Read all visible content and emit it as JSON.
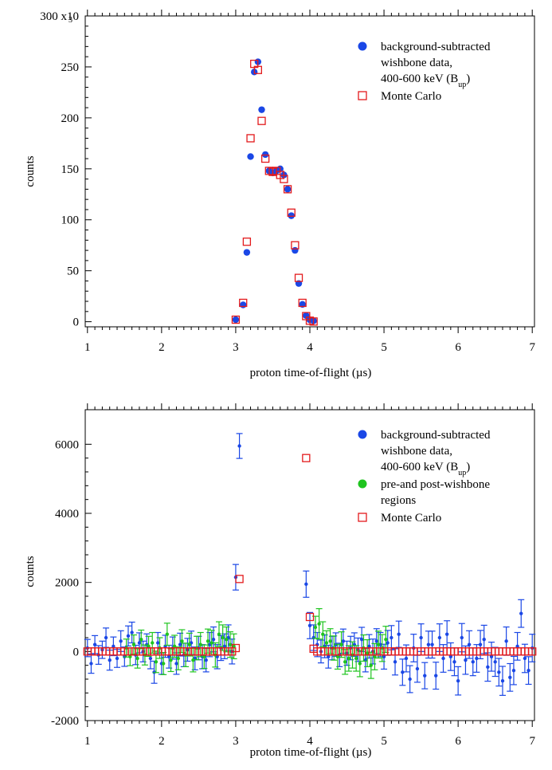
{
  "chart_data": [
    {
      "type": "scatter",
      "xlabel": "proton time-of-flight (µs)",
      "ylabel": "counts",
      "xlim": [
        0.97,
        7.03
      ],
      "ylim": [
        -5000,
        300000
      ],
      "xticks": [
        1,
        2,
        3,
        4,
        5,
        6,
        7
      ],
      "xtick_labels": [
        "1",
        "2",
        "3",
        "4",
        "5",
        "6",
        "7"
      ],
      "yticks": [
        0,
        50000,
        100000,
        150000,
        200000,
        250000,
        300000
      ],
      "ytick_labels": [
        "0",
        "50",
        "100",
        "150",
        "200",
        "250",
        "300 x10"
      ],
      "ytick_exponent": "3",
      "legend_position": "top-right",
      "legend": [
        {
          "name": "blue",
          "marker": "circle",
          "color": "#1a47e6",
          "lines": [
            "background-subtracted",
            "wishbone data,",
            "400-600 keV (B"
          ],
          "sub": "up",
          "close": ")"
        },
        {
          "name": "red",
          "marker": "square",
          "color": "#e31a1c",
          "lines": [
            "Monte Carlo"
          ]
        }
      ],
      "series": [
        {
          "name": "background-subtracted wishbone data, 400-600 keV (Bup)",
          "marker": "circle",
          "color": "#1a47e6",
          "x": [
            3.0,
            3.1,
            3.15,
            3.2,
            3.25,
            3.3,
            3.35,
            3.4,
            3.45,
            3.5,
            3.55,
            3.6,
            3.65,
            3.7,
            3.75,
            3.8,
            3.85,
            3.9,
            3.95,
            4.0,
            4.05
          ],
          "y": [
            2000,
            16500,
            68000,
            162000,
            245000,
            255000,
            208000,
            164000,
            148000,
            146000,
            148000,
            150000,
            144000,
            130000,
            104000,
            70000,
            37500,
            17000,
            6000,
            1800,
            800
          ]
        },
        {
          "name": "Monte Carlo",
          "marker": "square",
          "color": "#e31a1c",
          "x": [
            3.0,
            3.1,
            3.15,
            3.2,
            3.25,
            3.3,
            3.35,
            3.4,
            3.45,
            3.5,
            3.55,
            3.6,
            3.65,
            3.7,
            3.75,
            3.8,
            3.85,
            3.9,
            3.95,
            4.0,
            4.05
          ],
          "y": [
            2000,
            18500,
            78500,
            180000,
            253000,
            247000,
            197000,
            160000,
            148000,
            147000,
            148000,
            144000,
            140000,
            130000,
            107000,
            75000,
            43000,
            18500,
            5500,
            1000,
            200
          ]
        }
      ]
    },
    {
      "type": "scatter",
      "xlabel": "proton time-of-flight (µs)",
      "ylabel": "counts",
      "xlim": [
        0.97,
        7.03
      ],
      "ylim": [
        -2000,
        7000
      ],
      "xticks": [
        1,
        2,
        3,
        4,
        5,
        6,
        7
      ],
      "xtick_labels": [
        "1",
        "2",
        "3",
        "4",
        "5",
        "6",
        "7"
      ],
      "yticks": [
        -2000,
        0,
        2000,
        4000,
        6000
      ],
      "ytick_labels": [
        "-2000",
        "0",
        "2000",
        "4000",
        "6000"
      ],
      "legend_position": "top-right",
      "legend": [
        {
          "name": "blue",
          "marker": "circle",
          "color": "#1a47e6",
          "lines": [
            "background-subtracted",
            "wishbone data,",
            "400-600 keV (B"
          ],
          "sub": "up",
          "close": ")"
        },
        {
          "name": "green",
          "marker": "circle",
          "color": "#1fc41f",
          "lines": [
            "pre-and post-wishbone",
            "regions"
          ]
        },
        {
          "name": "red",
          "marker": "square",
          "color": "#e31a1c",
          "lines": [
            "Monte Carlo"
          ]
        }
      ],
      "series": [
        {
          "name": "background-subtracted wishbone data, 400-600 keV (Bup)",
          "marker": "dot",
          "color": "#1a47e6",
          "x": [
            1.0,
            1.05,
            1.1,
            1.15,
            1.2,
            1.25,
            1.3,
            1.35,
            1.4,
            1.45,
            1.5,
            1.55,
            1.6,
            1.65,
            1.7,
            1.75,
            1.8,
            1.85,
            1.9,
            1.95,
            2.0,
            2.05,
            2.1,
            2.15,
            2.2,
            2.25,
            2.3,
            2.35,
            2.4,
            2.45,
            2.5,
            2.55,
            2.6,
            2.65,
            2.7,
            2.75,
            2.8,
            2.85,
            2.9,
            2.95,
            3.0,
            3.05,
            3.95,
            4.0,
            4.05,
            4.1,
            4.15,
            4.2,
            4.25,
            4.3,
            4.35,
            4.4,
            4.45,
            4.5,
            4.55,
            4.6,
            4.65,
            4.7,
            4.75,
            4.8,
            4.85,
            4.9,
            4.95,
            5.0,
            5.05,
            5.1,
            5.15,
            5.2,
            5.25,
            5.3,
            5.35,
            5.4,
            5.45,
            5.5,
            5.55,
            5.6,
            5.65,
            5.7,
            5.75,
            5.8,
            5.85,
            5.9,
            5.95,
            6.0,
            6.05,
            6.1,
            6.15,
            6.2,
            6.25,
            6.3,
            6.35,
            6.4,
            6.45,
            6.5,
            6.55,
            6.6,
            6.65,
            6.7,
            6.75,
            6.8,
            6.85,
            6.9,
            6.95,
            7.0
          ],
          "y": [
            100,
            -350,
            200,
            -100,
            50,
            400,
            -250,
            150,
            -200,
            300,
            -150,
            450,
            550,
            -100,
            250,
            0,
            200,
            -200,
            -600,
            250,
            -350,
            150,
            -150,
            100,
            -350,
            200,
            -100,
            50,
            250,
            -200,
            100,
            -150,
            -250,
            200,
            350,
            -150,
            100,
            150,
            400,
            0,
            2150,
            5950,
            1950,
            750,
            400,
            200,
            0,
            150,
            -150,
            100,
            200,
            -100,
            300,
            -50,
            100,
            200,
            50,
            350,
            -250,
            150,
            0,
            300,
            200,
            -150,
            250,
            400,
            -300,
            500,
            -600,
            -200,
            -800,
            100,
            -500,
            400,
            -700,
            200,
            200,
            -700,
            400,
            -200,
            500,
            -150,
            -300,
            -850,
            400,
            -250,
            200,
            -300,
            -200,
            200,
            350,
            -450,
            -150,
            -300,
            -600,
            -850,
            300,
            -750,
            -550,
            150,
            1100,
            -200,
            -550,
            100
          ],
          "err": [
            250,
            280,
            260,
            270,
            250,
            280,
            290,
            270,
            260,
            300,
            280,
            290,
            300,
            280,
            290,
            300,
            310,
            300,
            320,
            300,
            310,
            320,
            330,
            320,
            310,
            330,
            340,
            330,
            340,
            330,
            340,
            350,
            340,
            350,
            360,
            350,
            360,
            360,
            370,
            360,
            370,
            360,
            380,
            380,
            370,
            350,
            330,
            330,
            330,
            340,
            340,
            340,
            350,
            350,
            340,
            340,
            340,
            350,
            340,
            340,
            360,
            360,
            350,
            360,
            360,
            350,
            380,
            380,
            380,
            390,
            390,
            400,
            390,
            400,
            380,
            390,
            390,
            390,
            400,
            400,
            390,
            400,
            400,
            410,
            410,
            410,
            400,
            400,
            400,
            410,
            410,
            410,
            420,
            420,
            400,
            420,
            410,
            400,
            410,
            400,
            400,
            410,
            400,
            400
          ]
        },
        {
          "name": "pre-and post-wishbone regions",
          "marker": "dot",
          "color": "#1fc41f",
          "x": [
            1.525,
            1.575,
            1.625,
            1.675,
            1.725,
            1.775,
            1.825,
            1.875,
            1.925,
            1.975,
            2.025,
            2.075,
            2.125,
            2.175,
            2.225,
            2.275,
            2.325,
            2.375,
            2.425,
            2.475,
            2.525,
            2.575,
            2.625,
            2.675,
            2.725,
            2.775,
            2.825,
            2.875,
            2.925,
            2.975,
            4.075,
            4.125,
            4.175,
            4.225,
            4.275,
            4.325,
            4.375,
            4.425,
            4.475,
            4.525,
            4.575,
            4.625,
            4.675,
            4.725,
            4.775,
            4.825,
            4.875,
            4.925,
            4.975,
            5.025
          ],
          "y": [
            100,
            -150,
            200,
            -200,
            350,
            -100,
            150,
            250,
            -300,
            100,
            -350,
            500,
            -250,
            150,
            -200,
            300,
            -100,
            200,
            -250,
            100,
            200,
            -150,
            300,
            250,
            -100,
            500,
            400,
            350,
            200,
            150,
            700,
            800,
            500,
            250,
            300,
            100,
            -150,
            200,
            -300,
            -200,
            -100,
            -200,
            -350,
            100,
            -50,
            -400,
            -150,
            200,
            100,
            350
          ],
          "err": [
            260,
            260,
            280,
            280,
            270,
            290,
            290,
            300,
            310,
            300,
            320,
            320,
            330,
            320,
            330,
            330,
            340,
            330,
            340,
            340,
            350,
            340,
            350,
            360,
            350,
            360,
            370,
            360,
            370,
            360,
            320,
            440,
            360,
            350,
            360,
            350,
            360,
            370,
            360,
            370,
            380,
            370,
            380,
            380,
            390,
            380,
            380,
            390,
            390,
            380
          ]
        },
        {
          "name": "Monte Carlo",
          "marker": "square",
          "color": "#e31a1c",
          "x": [
            1.0,
            1.05,
            1.1,
            1.15,
            1.2,
            1.25,
            1.3,
            1.35,
            1.4,
            1.45,
            1.5,
            1.55,
            1.6,
            1.65,
            1.7,
            1.75,
            1.8,
            1.85,
            1.9,
            1.95,
            2.0,
            2.05,
            2.1,
            2.15,
            2.2,
            2.25,
            2.3,
            2.35,
            2.4,
            2.45,
            2.5,
            2.55,
            2.6,
            2.65,
            2.7,
            2.75,
            2.8,
            2.85,
            2.9,
            2.95,
            3.0,
            3.05,
            3.95,
            4.0,
            4.05,
            4.1,
            4.15,
            4.2,
            4.25,
            4.3,
            4.35,
            4.4,
            4.45,
            4.5,
            4.55,
            4.6,
            4.65,
            4.7,
            4.75,
            4.8,
            4.85,
            4.9,
            4.95,
            5.0,
            5.05,
            5.1,
            5.15,
            5.2,
            5.25,
            5.3,
            5.35,
            5.4,
            5.45,
            5.5,
            5.55,
            5.6,
            5.65,
            5.7,
            5.75,
            5.8,
            5.85,
            5.9,
            5.95,
            6.0,
            6.05,
            6.1,
            6.15,
            6.2,
            6.25,
            6.3,
            6.35,
            6.4,
            6.45,
            6.5,
            6.55,
            6.6,
            6.65,
            6.7,
            6.75,
            6.8,
            6.85,
            6.9,
            6.95,
            7.0
          ],
          "y": [
            0,
            0,
            0,
            0,
            0,
            0,
            0,
            0,
            0,
            0,
            0,
            0,
            0,
            0,
            0,
            0,
            0,
            0,
            0,
            0,
            0,
            0,
            0,
            0,
            0,
            0,
            0,
            0,
            0,
            0,
            0,
            0,
            0,
            0,
            0,
            0,
            0,
            0,
            0,
            0,
            100,
            2100,
            5600,
            1000,
            80,
            0,
            0,
            0,
            0,
            0,
            0,
            0,
            0,
            0,
            0,
            0,
            0,
            0,
            0,
            0,
            0,
            0,
            0,
            0,
            0,
            0,
            0,
            0,
            0,
            0,
            0,
            0,
            0,
            0,
            0,
            0,
            0,
            0,
            0,
            0,
            0,
            0,
            0,
            0,
            0,
            0,
            0,
            0,
            0,
            0,
            0,
            0,
            0,
            0,
            0,
            0,
            0,
            0,
            0,
            0,
            0,
            0,
            0,
            0
          ]
        }
      ]
    }
  ]
}
